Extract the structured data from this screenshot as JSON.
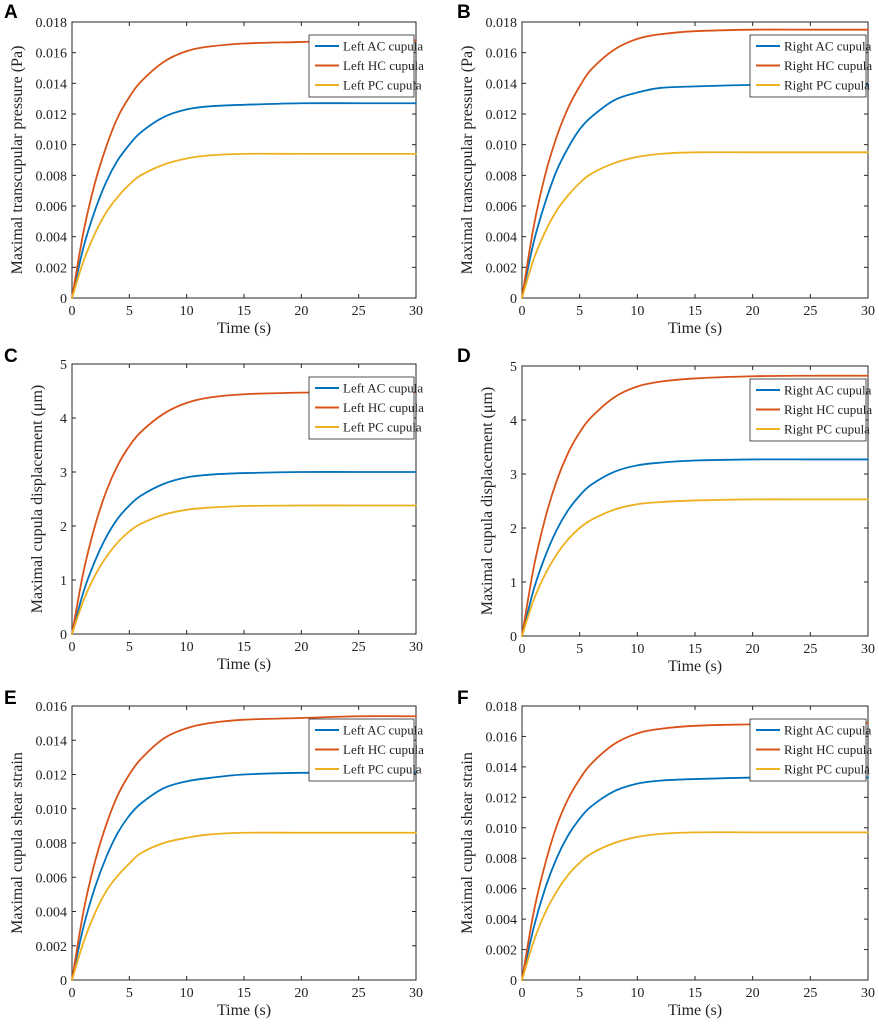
{
  "chart_data": [
    {
      "panel": "A",
      "type": "line",
      "title": "",
      "xlabel": "Time (s)",
      "ylabel": "Maximal transcupular pressure (Pa)",
      "xlim": [
        0,
        30
      ],
      "ylim": [
        0,
        0.018
      ],
      "xticks": [
        "0",
        "5",
        "10",
        "15",
        "20",
        "25",
        "30"
      ],
      "yticks": [
        "0",
        "0.002",
        "0.004",
        "0.006",
        "0.008",
        "0.010",
        "0.012",
        "0.014",
        "0.016",
        "0.018"
      ],
      "legend_position": "top-right",
      "x": [
        0,
        1,
        2,
        3,
        4,
        5,
        6,
        8,
        10,
        12,
        15,
        20,
        25,
        30
      ],
      "series": [
        {
          "name": "Left AC cupula",
          "color": "#0072BD",
          "values": [
            0,
            0.0033,
            0.0057,
            0.0076,
            0.009,
            0.01,
            0.0108,
            0.0118,
            0.0123,
            0.0125,
            0.0126,
            0.0127,
            0.0127,
            0.0127
          ]
        },
        {
          "name": "Left HC cupula",
          "color": "#D95319",
          "values": [
            0,
            0.0043,
            0.0075,
            0.0099,
            0.0118,
            0.0131,
            0.0141,
            0.0154,
            0.0161,
            0.0164,
            0.0166,
            0.0167,
            0.0168,
            0.0168
          ]
        },
        {
          "name": "Left PC cupula",
          "color": "#EDB120",
          "values": [
            0,
            0.0024,
            0.0042,
            0.0056,
            0.0066,
            0.0074,
            0.008,
            0.0087,
            0.0091,
            0.0093,
            0.0094,
            0.0094,
            0.0094,
            0.0094
          ]
        }
      ]
    },
    {
      "panel": "B",
      "type": "line",
      "title": "",
      "xlabel": "Time (s)",
      "ylabel": "Maximal transcupular pressure (Pa)",
      "xlim": [
        0,
        30
      ],
      "ylim": [
        0,
        0.018
      ],
      "xticks": [
        "0",
        "5",
        "10",
        "15",
        "20",
        "25",
        "30"
      ],
      "yticks": [
        "0",
        "0.002",
        "0.004",
        "0.006",
        "0.008",
        "0.010",
        "0.012",
        "0.014",
        "0.016",
        "0.018"
      ],
      "legend_position": "top-right",
      "x": [
        0,
        1,
        2,
        3,
        4,
        5,
        6,
        8,
        10,
        12,
        15,
        20,
        25,
        30
      ],
      "series": [
        {
          "name": "Right AC cupula",
          "color": "#0072BD",
          "values": [
            0,
            0.0036,
            0.0062,
            0.0083,
            0.0098,
            0.011,
            0.0118,
            0.0129,
            0.0134,
            0.0137,
            0.0138,
            0.0139,
            0.0139,
            0.0139
          ]
        },
        {
          "name": "Right HC cupula",
          "color": "#D95319",
          "values": [
            0,
            0.0046,
            0.008,
            0.0105,
            0.0124,
            0.0138,
            0.0149,
            0.0162,
            0.0169,
            0.0172,
            0.0174,
            0.0175,
            0.0175,
            0.0175
          ]
        },
        {
          "name": "Right PC cupula",
          "color": "#EDB120",
          "values": [
            0,
            0.0025,
            0.0043,
            0.0057,
            0.0067,
            0.0075,
            0.0081,
            0.0088,
            0.0092,
            0.0094,
            0.0095,
            0.0095,
            0.0095,
            0.0095
          ]
        }
      ]
    },
    {
      "panel": "C",
      "type": "line",
      "title": "",
      "xlabel": "Time (s)",
      "ylabel": "Maximal cupula displacement (μm)",
      "xlim": [
        0,
        30
      ],
      "ylim": [
        0,
        5
      ],
      "xticks": [
        "0",
        "5",
        "10",
        "15",
        "20",
        "25",
        "30"
      ],
      "yticks": [
        "0",
        "1",
        "2",
        "3",
        "4",
        "5"
      ],
      "legend_position": "top-right",
      "x": [
        0,
        1,
        2,
        3,
        4,
        5,
        6,
        8,
        10,
        12,
        15,
        20,
        25,
        30
      ],
      "series": [
        {
          "name": "Left AC cupula",
          "color": "#0072BD",
          "values": [
            0,
            0.78,
            1.35,
            1.8,
            2.14,
            2.38,
            2.56,
            2.78,
            2.9,
            2.95,
            2.98,
            3.0,
            3.0,
            3.0
          ]
        },
        {
          "name": "Left HC cupula",
          "color": "#D95319",
          "values": [
            0,
            1.15,
            2.0,
            2.65,
            3.13,
            3.48,
            3.74,
            4.08,
            4.28,
            4.38,
            4.44,
            4.47,
            4.48,
            4.48
          ]
        },
        {
          "name": "Left PC cupula",
          "color": "#EDB120",
          "values": [
            0,
            0.62,
            1.08,
            1.43,
            1.7,
            1.9,
            2.04,
            2.21,
            2.3,
            2.34,
            2.37,
            2.38,
            2.38,
            2.38
          ]
        }
      ]
    },
    {
      "panel": "D",
      "type": "line",
      "title": "",
      "xlabel": "Time (s)",
      "ylabel": "Maximal cupula displacement (μm)",
      "xlim": [
        0,
        30
      ],
      "ylim": [
        0,
        5
      ],
      "xticks": [
        "0",
        "5",
        "10",
        "15",
        "20",
        "25",
        "30"
      ],
      "yticks": [
        "0",
        "1",
        "2",
        "3",
        "4",
        "5"
      ],
      "legend_position": "top-right",
      "x": [
        0,
        1,
        2,
        3,
        4,
        5,
        6,
        8,
        10,
        12,
        15,
        20,
        25,
        30
      ],
      "series": [
        {
          "name": "Right AC cupula",
          "color": "#0072BD",
          "values": [
            0,
            0.85,
            1.47,
            1.96,
            2.33,
            2.6,
            2.8,
            3.04,
            3.16,
            3.21,
            3.25,
            3.27,
            3.27,
            3.27
          ]
        },
        {
          "name": "Right HC cupula",
          "color": "#D95319",
          "values": [
            0,
            1.25,
            2.17,
            2.87,
            3.39,
            3.77,
            4.05,
            4.42,
            4.62,
            4.71,
            4.77,
            4.81,
            4.82,
            4.82
          ]
        },
        {
          "name": "Right PC cupula",
          "color": "#EDB120",
          "values": [
            0,
            0.66,
            1.14,
            1.51,
            1.79,
            2.0,
            2.15,
            2.34,
            2.44,
            2.48,
            2.51,
            2.53,
            2.53,
            2.53
          ]
        }
      ]
    },
    {
      "panel": "E",
      "type": "line",
      "title": "",
      "xlabel": "Time (s)",
      "ylabel": "Maximal cupula shear strain",
      "xlim": [
        0,
        30
      ],
      "ylim": [
        0,
        0.016
      ],
      "xticks": [
        "0",
        "5",
        "10",
        "15",
        "20",
        "25",
        "30"
      ],
      "yticks": [
        "0",
        "0.002",
        "0.004",
        "0.006",
        "0.008",
        "0.010",
        "0.012",
        "0.014",
        "0.016"
      ],
      "legend_position": "top-right",
      "x": [
        0,
        1,
        2,
        3,
        4,
        5,
        6,
        8,
        10,
        12,
        15,
        20,
        25,
        30
      ],
      "series": [
        {
          "name": "Left AC cupula",
          "color": "#0072BD",
          "values": [
            0,
            0.0031,
            0.0054,
            0.0072,
            0.0086,
            0.0096,
            0.0103,
            0.0112,
            0.0116,
            0.0118,
            0.012,
            0.0121,
            0.0121,
            0.0121
          ]
        },
        {
          "name": "Left HC cupula",
          "color": "#D95319",
          "values": [
            0,
            0.004,
            0.0069,
            0.0091,
            0.0108,
            0.012,
            0.0129,
            0.0141,
            0.0147,
            0.015,
            0.0152,
            0.0153,
            0.0154,
            0.0154
          ]
        },
        {
          "name": "Left PC cupula",
          "color": "#EDB120",
          "values": [
            0,
            0.0022,
            0.0039,
            0.0052,
            0.0061,
            0.0068,
            0.0074,
            0.008,
            0.0083,
            0.0085,
            0.0086,
            0.0086,
            0.0086,
            0.0086
          ]
        }
      ]
    },
    {
      "panel": "F",
      "type": "line",
      "title": "",
      "xlabel": "Time (s)",
      "ylabel": "Maximal cupula shear strain",
      "xlim": [
        0,
        30
      ],
      "ylim": [
        0,
        0.018
      ],
      "xticks": [
        "0",
        "5",
        "10",
        "15",
        "20",
        "25",
        "30"
      ],
      "yticks": [
        "0",
        "0.002",
        "0.004",
        "0.006",
        "0.008",
        "0.010",
        "0.012",
        "0.014",
        "0.016",
        "0.018"
      ],
      "legend_position": "top-right",
      "x": [
        0,
        1,
        2,
        3,
        4,
        5,
        6,
        8,
        10,
        12,
        15,
        20,
        25,
        30
      ],
      "series": [
        {
          "name": "Right AC cupula",
          "color": "#0072BD",
          "values": [
            0,
            0.0034,
            0.006,
            0.008,
            0.0095,
            0.0106,
            0.0114,
            0.0124,
            0.0129,
            0.0131,
            0.0132,
            0.0133,
            0.0133,
            0.0133
          ]
        },
        {
          "name": "Right HC cupula",
          "color": "#D95319",
          "values": [
            0,
            0.0044,
            0.0076,
            0.0101,
            0.0119,
            0.0132,
            0.0142,
            0.0155,
            0.0162,
            0.0165,
            0.0167,
            0.0168,
            0.0169,
            0.0169
          ]
        },
        {
          "name": "Right PC cupula",
          "color": "#EDB120",
          "values": [
            0,
            0.0025,
            0.0044,
            0.0058,
            0.0069,
            0.0077,
            0.0083,
            0.009,
            0.0094,
            0.0096,
            0.0097,
            0.0097,
            0.0097,
            0.0097
          ]
        }
      ]
    }
  ]
}
